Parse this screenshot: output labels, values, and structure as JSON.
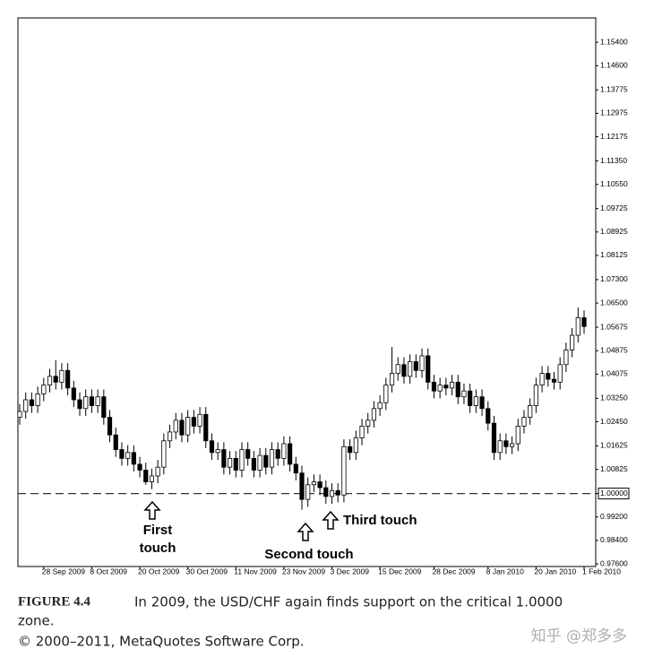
{
  "chart_data": {
    "type": "candlestick",
    "categories": [
      null,
      null,
      null,
      null,
      "28 Sep 2009",
      null,
      null,
      null,
      null,
      null,
      null,
      null,
      "8 Oct 2009",
      null,
      null,
      null,
      null,
      null,
      null,
      null,
      "20 Oct 2009",
      null,
      null,
      null,
      null,
      null,
      null,
      null,
      "30 Oct 2009",
      null,
      null,
      null,
      null,
      null,
      null,
      null,
      "11 Nov 2009",
      null,
      null,
      null,
      null,
      null,
      null,
      null,
      "23 Nov 2009",
      null,
      null,
      null,
      null,
      null,
      null,
      null,
      "3 Dec 2009",
      null,
      null,
      null,
      null,
      null,
      null,
      null,
      "15 Dec 2009",
      null,
      null,
      null,
      null,
      null,
      null,
      null,
      null,
      "28 Dec 2009",
      null,
      null,
      null,
      null,
      null,
      null,
      null,
      null,
      "8 Jan 2010",
      null,
      null,
      null,
      null,
      null,
      null,
      null,
      "20 Jan 2010",
      null,
      null,
      null,
      null,
      null,
      null,
      null,
      "1 Feb 2010"
    ],
    "ohlc": [
      [
        1.026,
        1.0305,
        1.0235,
        1.028
      ],
      [
        1.028,
        1.0345,
        1.0255,
        1.032
      ],
      [
        1.032,
        1.0345,
        1.0275,
        1.03
      ],
      [
        1.03,
        1.0365,
        1.0275,
        1.034
      ],
      [
        1.034,
        1.0395,
        1.0315,
        1.037
      ],
      [
        1.037,
        1.0425,
        1.0345,
        1.04
      ],
      [
        1.04,
        1.0455,
        1.0355,
        1.038
      ],
      [
        1.038,
        1.0445,
        1.0355,
        1.042
      ],
      [
        1.042,
        1.0445,
        1.0335,
        1.036
      ],
      [
        1.036,
        1.0385,
        1.0295,
        1.032
      ],
      [
        1.032,
        1.0345,
        1.0265,
        1.029
      ],
      [
        1.029,
        1.0355,
        1.0265,
        1.033
      ],
      [
        1.033,
        1.0355,
        1.0275,
        1.03
      ],
      [
        1.03,
        1.0355,
        1.0275,
        1.033
      ],
      [
        1.033,
        1.0355,
        1.0235,
        1.026
      ],
      [
        1.026,
        1.0285,
        1.0175,
        1.02
      ],
      [
        1.02,
        1.0225,
        1.0125,
        1.015
      ],
      [
        1.015,
        1.0175,
        1.0095,
        1.012
      ],
      [
        1.012,
        1.0165,
        1.0095,
        1.014
      ],
      [
        1.014,
        1.0165,
        1.0075,
        1.01
      ],
      [
        1.01,
        1.0125,
        1.0055,
        1.008
      ],
      [
        1.008,
        1.0105,
        1.003,
        1.004
      ],
      [
        1.004,
        1.0085,
        1.0015,
        1.006
      ],
      [
        1.006,
        1.0115,
        1.0035,
        1.009
      ],
      [
        1.009,
        1.0205,
        1.0065,
        1.018
      ],
      [
        1.018,
        1.0235,
        1.0155,
        1.021
      ],
      [
        1.021,
        1.0275,
        1.0185,
        1.025
      ],
      [
        1.025,
        1.0275,
        1.0175,
        1.02
      ],
      [
        1.02,
        1.0285,
        1.0175,
        1.026
      ],
      [
        1.026,
        1.0285,
        1.0205,
        1.023
      ],
      [
        1.023,
        1.0295,
        1.0205,
        1.027
      ],
      [
        1.027,
        1.0295,
        1.0155,
        1.018
      ],
      [
        1.018,
        1.0205,
        1.0115,
        1.014
      ],
      [
        1.014,
        1.0175,
        1.0115,
        1.015
      ],
      [
        1.015,
        1.0175,
        1.0065,
        1.009
      ],
      [
        1.009,
        1.0145,
        1.0065,
        1.012
      ],
      [
        1.012,
        1.0145,
        1.0055,
        1.008
      ],
      [
        1.008,
        1.0175,
        1.0055,
        1.015
      ],
      [
        1.015,
        1.0175,
        1.0095,
        1.012
      ],
      [
        1.012,
        1.0145,
        1.0055,
        1.008
      ],
      [
        1.008,
        1.0155,
        1.0055,
        1.013
      ],
      [
        1.013,
        1.0155,
        1.0065,
        1.009
      ],
      [
        1.009,
        1.0175,
        1.0065,
        1.015
      ],
      [
        1.015,
        1.0175,
        1.0095,
        1.012
      ],
      [
        1.012,
        1.0195,
        1.0095,
        1.017
      ],
      [
        1.017,
        1.0195,
        1.0075,
        1.01
      ],
      [
        1.01,
        1.0125,
        1.0045,
        1.007
      ],
      [
        1.007,
        1.0095,
        0.9945,
        0.998
      ],
      [
        0.998,
        1.0055,
        0.9955,
        1.003
      ],
      [
        1.003,
        1.0065,
        1.0005,
        1.004
      ],
      [
        1.004,
        1.0065,
        0.9995,
        1.002
      ],
      [
        1.002,
        1.0045,
        0.9965,
        0.999
      ],
      [
        0.999,
        1.0035,
        0.9965,
        1.001
      ],
      [
        1.001,
        1.0035,
        0.997,
        0.9995
      ],
      [
        0.9995,
        1.0185,
        0.997,
        1.016
      ],
      [
        1.016,
        1.0185,
        1.0115,
        1.014
      ],
      [
        1.014,
        1.0215,
        1.0115,
        1.019
      ],
      [
        1.019,
        1.0255,
        1.0165,
        1.023
      ],
      [
        1.023,
        1.0275,
        1.0205,
        1.025
      ],
      [
        1.025,
        1.0315,
        1.0225,
        1.029
      ],
      [
        1.029,
        1.0335,
        1.0265,
        1.031
      ],
      [
        1.031,
        1.0395,
        1.0285,
        1.037
      ],
      [
        1.037,
        1.05,
        1.0345,
        1.041
      ],
      [
        1.041,
        1.0465,
        1.0385,
        1.044
      ],
      [
        1.044,
        1.0465,
        1.0375,
        1.04
      ],
      [
        1.04,
        1.0475,
        1.0375,
        1.045
      ],
      [
        1.045,
        1.0475,
        1.0395,
        1.042
      ],
      [
        1.042,
        1.0495,
        1.0395,
        1.047
      ],
      [
        1.047,
        1.0495,
        1.0355,
        1.038
      ],
      [
        1.038,
        1.0405,
        1.0325,
        1.035
      ],
      [
        1.035,
        1.0395,
        1.0325,
        1.037
      ],
      [
        1.037,
        1.0395,
        1.0335,
        1.036
      ],
      [
        1.036,
        1.0405,
        1.0335,
        1.038
      ],
      [
        1.038,
        1.0405,
        1.0305,
        1.033
      ],
      [
        1.033,
        1.0375,
        1.0305,
        1.035
      ],
      [
        1.035,
        1.0375,
        1.0275,
        1.03
      ],
      [
        1.03,
        1.0355,
        1.0275,
        1.033
      ],
      [
        1.033,
        1.0355,
        1.0265,
        1.029
      ],
      [
        1.029,
        1.0315,
        1.0215,
        1.024
      ],
      [
        1.024,
        1.0265,
        1.0115,
        1.014
      ],
      [
        1.014,
        1.0205,
        1.0115,
        1.018
      ],
      [
        1.018,
        1.0205,
        1.0135,
        1.016
      ],
      [
        1.016,
        1.0195,
        1.0135,
        1.017
      ],
      [
        1.017,
        1.0255,
        1.0145,
        1.023
      ],
      [
        1.023,
        1.0285,
        1.0205,
        1.026
      ],
      [
        1.026,
        1.0325,
        1.0235,
        1.03
      ],
      [
        1.03,
        1.0395,
        1.0275,
        1.037
      ],
      [
        1.037,
        1.0435,
        1.0345,
        1.041
      ],
      [
        1.041,
        1.0435,
        1.0365,
        1.039
      ],
      [
        1.039,
        1.0415,
        1.0355,
        1.038
      ],
      [
        1.038,
        1.0465,
        1.0355,
        1.044
      ],
      [
        1.044,
        1.0515,
        1.0415,
        1.049
      ],
      [
        1.049,
        1.0565,
        1.0465,
        1.054
      ],
      [
        1.054,
        1.0635,
        1.0515,
        1.06
      ],
      [
        1.06,
        1.0625,
        1.0545,
        1.057
      ]
    ],
    "up_color": "#ffffff",
    "down_color": "#000000",
    "color": "#000000",
    "ylim": [
      0.9751,
      1.1623
    ],
    "yticks": [
      {
        "value": 1.154,
        "label": "1.15400"
      },
      {
        "value": 1.146,
        "label": "1.14600"
      },
      {
        "value": 1.13775,
        "label": "1.13775"
      },
      {
        "value": 1.12975,
        "label": "1.12975"
      },
      {
        "value": 1.12175,
        "label": "1.12175"
      },
      {
        "value": 1.1135,
        "label": "1.11350"
      },
      {
        "value": 1.1055,
        "label": "1.10550"
      },
      {
        "value": 1.09725,
        "label": "1.09725"
      },
      {
        "value": 1.08925,
        "label": "1.08925"
      },
      {
        "value": 1.08125,
        "label": "1.08125"
      },
      {
        "value": 1.073,
        "label": "1.07300"
      },
      {
        "value": 1.065,
        "label": "1.06500"
      },
      {
        "value": 1.05675,
        "label": "1.05675"
      },
      {
        "value": 1.04875,
        "label": "1.04875"
      },
      {
        "value": 1.04075,
        "label": "1.04075"
      },
      {
        "value": 1.0325,
        "label": "1.03250"
      },
      {
        "value": 1.0245,
        "label": "1.02450"
      },
      {
        "value": 1.01625,
        "label": "1.01625"
      },
      {
        "value": 1.00825,
        "label": "1.00825"
      },
      {
        "value": 1.0,
        "label": "1.00000"
      },
      {
        "value": 0.992,
        "label": "0.99200"
      },
      {
        "value": 0.984,
        "label": "0.98400"
      },
      {
        "value": 0.976,
        "label": "0.97600"
      }
    ],
    "support_tick": 19,
    "annotations": {
      "first": [
        "First",
        "touch"
      ],
      "second": "Second touch",
      "third": "Third touch"
    }
  },
  "caption": {
    "figure": "FIGURE 4.4",
    "text": "In 2009, the USD/CHF again finds support on the critical 1.0000",
    "text2": "zone.",
    "copyright": "© 2000–2011, MetaQuotes Software Corp.",
    "watermark": "知乎 @郑多多"
  }
}
